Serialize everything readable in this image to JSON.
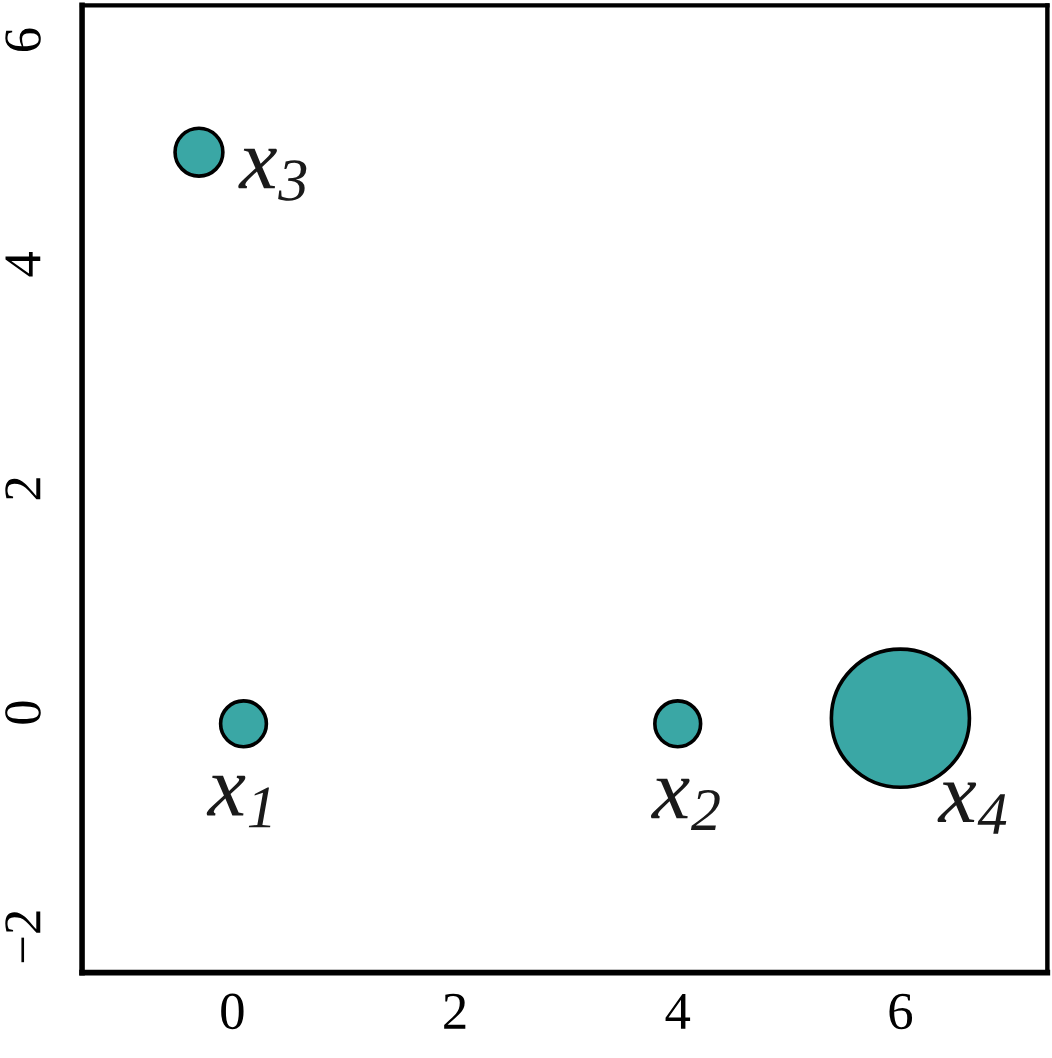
{
  "chart_data": {
    "type": "bubble",
    "x": [
      0.1,
      4,
      -0.3,
      6
    ],
    "values": [
      -0.1,
      -0.1,
      5,
      -0.05
    ],
    "sizes": [
      0.11,
      0.11,
      0.12,
      1
    ],
    "color": "#3aa7a5",
    "marker": "circle",
    "xlim": [
      -1.35,
      7.32
    ],
    "ylim": [
      -2.32,
      6.31
    ],
    "xticks": [
      0,
      2,
      4,
      6
    ],
    "yticks": [
      {
        "value": -2,
        "label": "−2"
      },
      0,
      2,
      4,
      6
    ],
    "annotations": [
      {
        "text": "x$_{1}$",
        "x": 0.1,
        "y": -0.1
      },
      {
        "text": "x$_{2}$",
        "x": 4,
        "y": -0.1
      },
      {
        "text": "x$_{3}$",
        "x": -0.3,
        "y": 5
      },
      {
        "text": "x$_{4}$",
        "x": 6,
        "y": -0.05
      }
    ]
  }
}
